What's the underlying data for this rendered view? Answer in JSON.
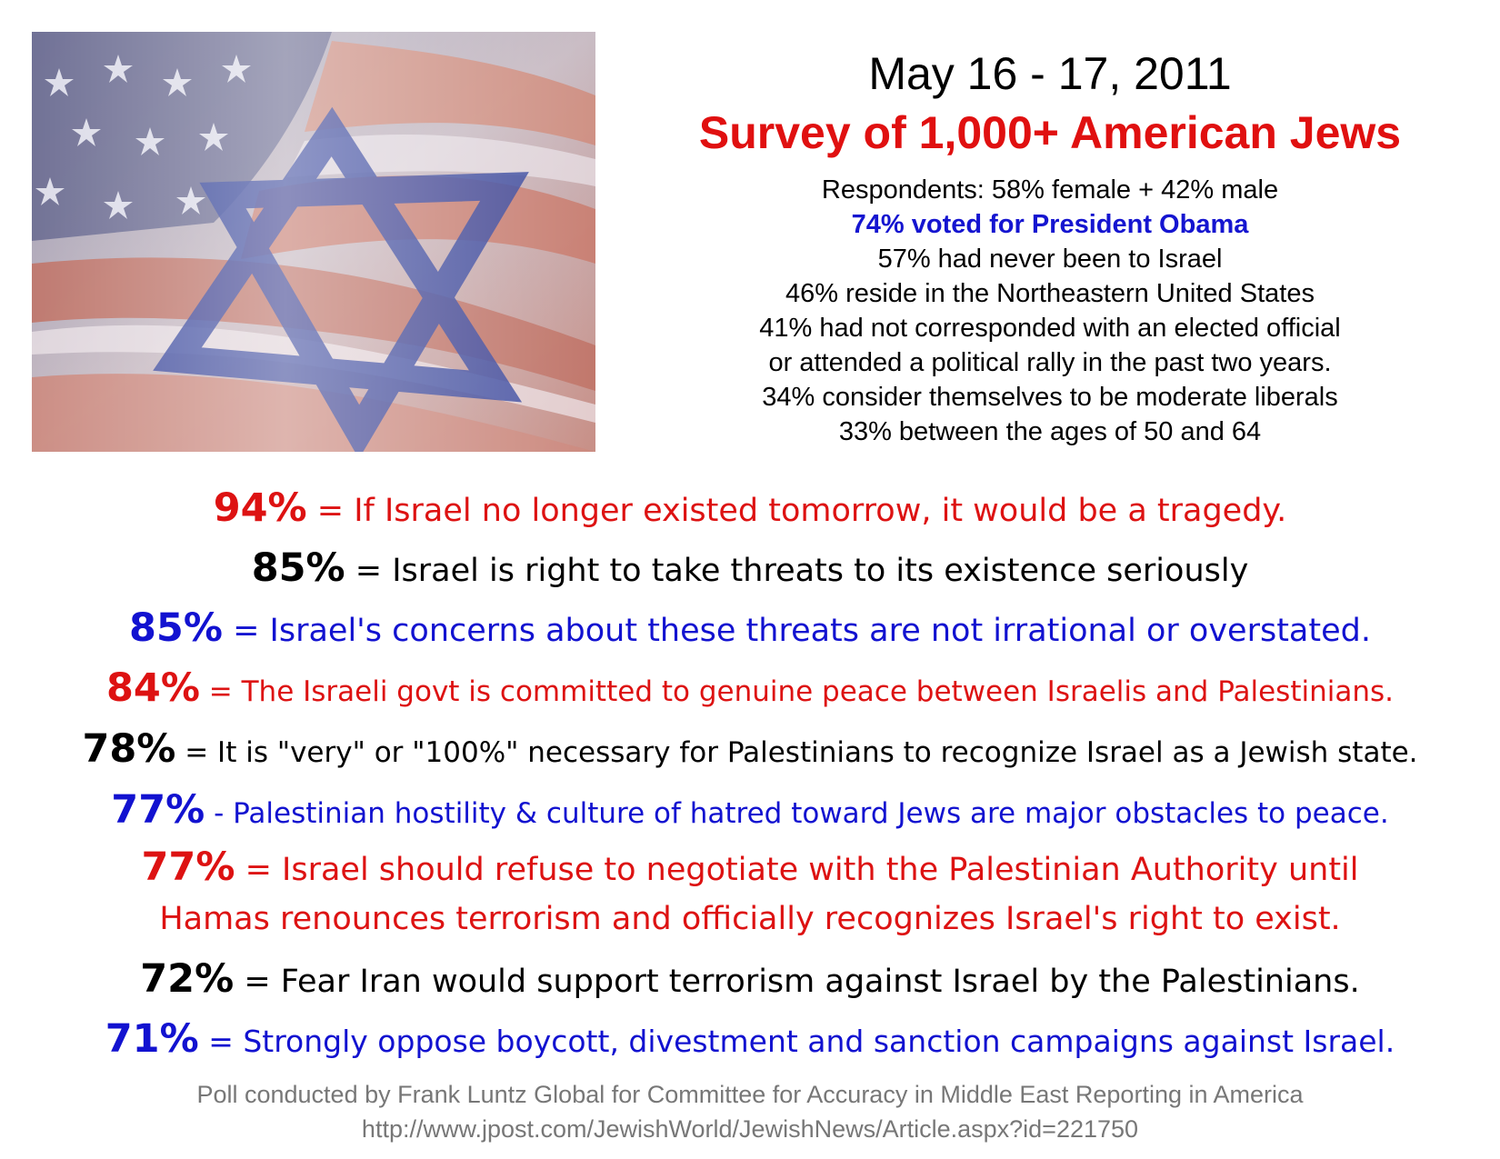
{
  "image": {
    "icon": "israeli-american-flag-image"
  },
  "header": {
    "date": "May 16 - 17, 2011",
    "title": "Survey of 1,000+ American Jews"
  },
  "respondents": [
    "Respondents: 58% female + 42% male",
    "74% voted for President Obama",
    "57% had never been to Israel",
    "46% reside in the Northeastern United States",
    "41% had not corresponded with an elected official",
    "or attended a political rally in the past two years.",
    "34% consider themselves to be moderate liberals",
    "33% between the ages of 50 and 64"
  ],
  "stats": [
    {
      "pct": "94%",
      "text": " = If Israel no longer existed tomorrow, it would be a tragedy.",
      "color": "#dd1212"
    },
    {
      "pct": "85%",
      "text": " = Israel is right to take threats to its existence seriously",
      "color": "#000000"
    },
    {
      "pct": "85%",
      "text": " = Israel's concerns about these threats are not irrational or overstated.",
      "color": "#1212d0"
    },
    {
      "pct": "84%",
      "text": " = The Israeli govt is committed to genuine peace between Israelis and Palestinians.",
      "color": "#dd1212"
    },
    {
      "pct": "78%",
      "text": " = It is \"very\" or \"100%\" necessary for Palestinians to recognize Israel as a Jewish state.",
      "color": "#000000"
    },
    {
      "pct": "77%",
      "text": " - Palestinian hostility & culture of hatred toward Jews are major obstacles to peace.",
      "color": "#1212d0"
    },
    {
      "pct": "77%",
      "text": " = Israel should refuse to negotiate with the Palestinian Authority until",
      "text2": "Hamas renounces terrorism and officially recognizes Israel's right to exist.",
      "color": "#dd1212"
    },
    {
      "pct": "72%",
      "text": " = Fear Iran would support terrorism against Israel by the Palestinians.",
      "color": "#000000"
    },
    {
      "pct": "71%",
      "text": " = Strongly oppose boycott, divestment and sanction campaigns against Israel.",
      "color": "#1212d0"
    }
  ],
  "footer": {
    "source": "Poll conducted by Frank Luntz Global for Committee for Accuracy in Middle East Reporting in America",
    "url": "http://www.jpost.com/JewishWorld/JewishNews/Article.aspx?id=221750"
  }
}
